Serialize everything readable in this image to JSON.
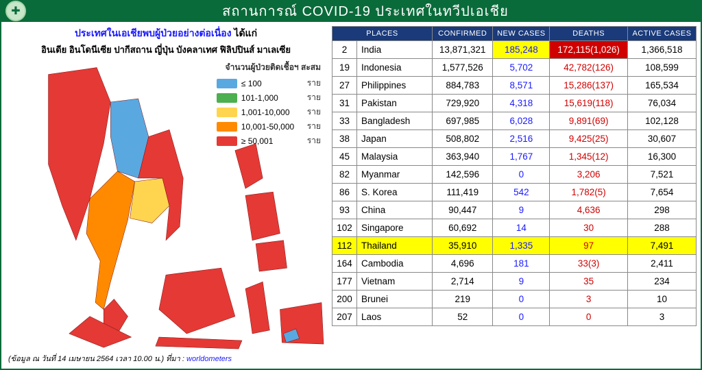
{
  "header": {
    "title": "สถานการณ์ COVID-19  ประเทศในทวีปเอเชีย"
  },
  "left": {
    "headline": "ประเทศในเอเชียพบผู้ป่วยอย่างต่อเนื่อง",
    "headline_suffix": "ได้แก่",
    "subheadline": "อินเดีย อินโดนีเซีย ปากีสถาน ญี่ปุ่น บังคลาเทศ ฟิลิปปินส์ มาเลเซีย",
    "legend_title": "จำนวนผู้ป่วยติดเชื้อฯ สะสม",
    "legend_unit": "ราย",
    "legend": [
      {
        "color": "#5aa8e0",
        "label": "≤ 100"
      },
      {
        "color": "#4caf50",
        "label": "101-1,000"
      },
      {
        "color": "#ffd54f",
        "label": "1,001-10,000"
      },
      {
        "color": "#ff8a00",
        "label": "10,001-50,000"
      },
      {
        "color": "#e53935",
        "label": "≥ 50,001"
      }
    ],
    "map_colors": {
      "default": "#e53935",
      "laos": "#5aa8e0",
      "cambodia_vn": "#ffd54f",
      "thailand": "#ff8a00",
      "brunei_tip": "#5aa8e0"
    },
    "footnote_prefix": "(ข้อมูล ณ วันที่ 14 เมษายน 2564 เวลา 10.00 น.) ที่มา : ",
    "footnote_source": "worldometers"
  },
  "table": {
    "headers": [
      "PLACES",
      "CONFIRMED",
      "NEW  CASES",
      "DEATHS",
      "ACTIVE CASES"
    ],
    "rows": [
      {
        "rank": 2,
        "place": "India",
        "confirmed": "13,871,321",
        "new": "185,248",
        "deaths": "172,115(1,026)",
        "active": "1,366,518",
        "new_hl": true,
        "death_hl": true
      },
      {
        "rank": 19,
        "place": "Indonesia",
        "confirmed": "1,577,526",
        "new": "5,702",
        "deaths": "42,782(126)",
        "active": "108,599"
      },
      {
        "rank": 27,
        "place": "Philippines",
        "confirmed": "884,783",
        "new": "8,571",
        "deaths": "15,286(137)",
        "active": "165,534"
      },
      {
        "rank": 31,
        "place": "Pakistan",
        "confirmed": "729,920",
        "new": "4,318",
        "deaths": "15,619(118)",
        "active": "76,034"
      },
      {
        "rank": 33,
        "place": "Bangladesh",
        "confirmed": "697,985",
        "new": "6,028",
        "deaths": "9,891(69)",
        "active": "102,128"
      },
      {
        "rank": 38,
        "place": "Japan",
        "confirmed": "508,802",
        "new": "2,516",
        "deaths": "9,425(25)",
        "active": "30,607"
      },
      {
        "rank": 45,
        "place": "Malaysia",
        "confirmed": "363,940",
        "new": "1,767",
        "deaths": "1,345(12)",
        "active": "16,300"
      },
      {
        "rank": 82,
        "place": "Myanmar",
        "confirmed": "142,596",
        "new": "0",
        "deaths": "3,206",
        "active": "7,521"
      },
      {
        "rank": 86,
        "place": "S. Korea",
        "confirmed": "111,419",
        "new": "542",
        "deaths": "1,782(5)",
        "active": "7,654"
      },
      {
        "rank": 93,
        "place": "China",
        "confirmed": "90,447",
        "new": "9",
        "deaths": "4,636",
        "active": "298"
      },
      {
        "rank": 102,
        "place": "Singapore",
        "confirmed": "60,692",
        "new": "14",
        "deaths": "30",
        "active": "288"
      },
      {
        "rank": 112,
        "place": "Thailand",
        "confirmed": "35,910",
        "new": "1,335",
        "deaths": "97",
        "active": "7,491",
        "row_hl": true
      },
      {
        "rank": 164,
        "place": "Cambodia",
        "confirmed": "4,696",
        "new": "181",
        "deaths": "33(3)",
        "active": "2,411"
      },
      {
        "rank": 177,
        "place": "Vietnam",
        "confirmed": "2,714",
        "new": "9",
        "deaths": "35",
        "active": "234"
      },
      {
        "rank": 200,
        "place": "Brunei",
        "confirmed": "219",
        "new": "0",
        "deaths": "3",
        "active": "10"
      },
      {
        "rank": 207,
        "place": "Laos",
        "confirmed": "52",
        "new": "0",
        "deaths": "0",
        "active": "3"
      }
    ]
  }
}
